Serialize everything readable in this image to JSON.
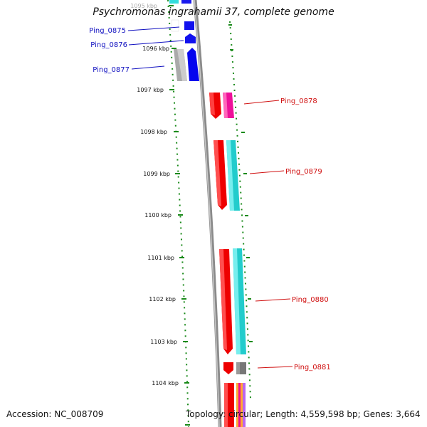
{
  "title": "Psychromonas ingrahamii 37, complete genome",
  "accession": "Accession: NC_008709",
  "summary": "Topology: circular; Length: 4,559,598 bp; Genes: 3,664",
  "colors": {
    "backbone": "#808080",
    "tick": "#1a7a1a",
    "left_label": "#1010c0",
    "right_label": "#d01010"
  },
  "scale_labels": [
    "1095 kbp",
    "1096 kbp",
    "1097 kbp",
    "1098 kbp",
    "1099 kbp",
    "1100 kbp",
    "1101 kbp",
    "1102 kbp",
    "1103 kbp",
    "1104 kbp"
  ],
  "genes": [
    {
      "label": "Ping_0875",
      "side": "left"
    },
    {
      "label": "Ping_0876",
      "side": "left"
    },
    {
      "label": "Ping_0877",
      "side": "left"
    },
    {
      "label": "Ping_0878",
      "side": "right"
    },
    {
      "label": "Ping_0879",
      "side": "right"
    },
    {
      "label": "Ping_0880",
      "side": "right"
    },
    {
      "label": "Ping_0881",
      "side": "right"
    }
  ]
}
